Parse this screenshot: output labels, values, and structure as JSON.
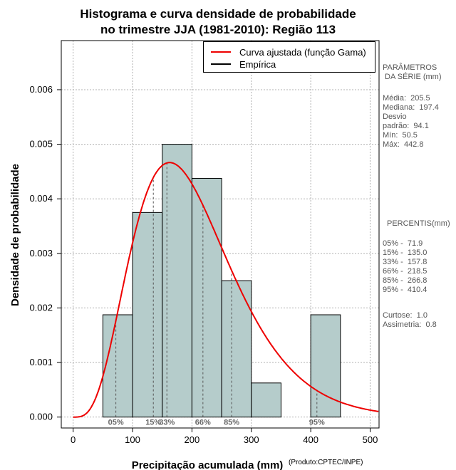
{
  "chart_data": {
    "type": "bar",
    "title_line1": "Histograma e curva densidade de probabilidade",
    "title_line2": "no trimestre JJA (1981-2010): Região 113",
    "xlabel": "Precipitação acumulada (mm)",
    "ylabel": "Densidade de probabilidade",
    "credit": "(Produto:CPTEC/INPE)",
    "xlim": [
      -20,
      515
    ],
    "ylim": [
      -0.0002,
      0.0069
    ],
    "x_ticks": [
      0,
      100,
      200,
      300,
      400,
      500
    ],
    "y_ticks": [
      0.0,
      0.001,
      0.002,
      0.003,
      0.004,
      0.005,
      0.006
    ],
    "y_tick_labels": [
      "0.000",
      "0.001",
      "0.002",
      "0.003",
      "0.004",
      "0.005",
      "0.006"
    ],
    "grid": true,
    "bar_color": "#b5cccb",
    "bins": [
      {
        "start": 50,
        "end": 100,
        "density": 0.001875
      },
      {
        "start": 100,
        "end": 150,
        "density": 0.00375
      },
      {
        "start": 150,
        "end": 200,
        "density": 0.005
      },
      {
        "start": 200,
        "end": 250,
        "density": 0.004375
      },
      {
        "start": 250,
        "end": 300,
        "density": 0.0025
      },
      {
        "start": 300,
        "end": 350,
        "density": 0.000625
      },
      {
        "start": 350,
        "end": 400,
        "density": 0.0
      },
      {
        "start": 400,
        "end": 450,
        "density": 0.001875
      }
    ],
    "gamma_fit": {
      "mean": 205.5,
      "sd": 94.1,
      "color": "#ee0000"
    },
    "percentiles": [
      {
        "label": "05%",
        "value": 71.9
      },
      {
        "label": "15%",
        "value": 135.0
      },
      {
        "label": "33%",
        "value": 157.8
      },
      {
        "label": "66%",
        "value": 218.5
      },
      {
        "label": "85%",
        "value": 266.8
      },
      {
        "label": "95%",
        "value": 410.4
      }
    ],
    "legend": {
      "placement": "top-right",
      "entries": [
        {
          "label": "Curva ajustada (função Gama)",
          "color": "#ee0000"
        },
        {
          "label": "Empírica",
          "color": "#000000"
        }
      ]
    }
  },
  "params": {
    "heading": "PARÂMETROS\n DA SÉRIE (mm)",
    "lines": "Média:  205.5\nMediana:  197.4\nDesvio\npadrão:  94.1\nMín:  50.5\nMáx:  442.8"
  },
  "percentis_panel": {
    "heading": "PERCENTIS(mm)",
    "lines": "05% -  71.9\n15% -  135.0\n33% -  157.8\n66% -  218.5\n85% -  266.8\n95% -  410.4",
    "stats": "Curtose:  1.0\nAssimetria:  0.8"
  }
}
